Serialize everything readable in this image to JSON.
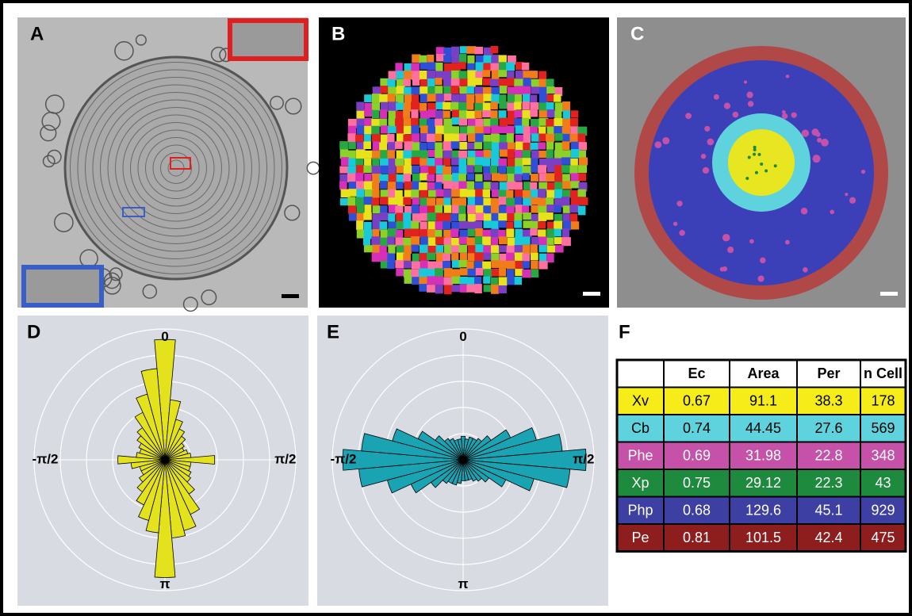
{
  "panels": [
    "A",
    "B",
    "C",
    "D",
    "E",
    "F"
  ],
  "chart_data": [
    {
      "type": "polar-bar",
      "color": "#e3e21c",
      "rlim": [
        0,
        5
      ],
      "rticks": [
        1,
        2,
        3,
        4,
        5
      ],
      "xticks": [
        {
          "value": 0,
          "label": "0"
        },
        {
          "value": 90,
          "label": "π/2"
        },
        {
          "value": 180,
          "label": "π"
        },
        {
          "value": 270,
          "label": "-π/2"
        }
      ],
      "x": [
        0,
        10,
        20,
        30,
        40,
        50,
        60,
        70,
        80,
        90,
        100,
        110,
        120,
        130,
        140,
        150,
        160,
        170,
        180,
        190,
        200,
        210,
        220,
        230,
        240,
        250,
        260,
        270,
        280,
        290,
        300,
        310,
        320,
        330,
        340,
        350
      ],
      "values": [
        4.6,
        2.3,
        1.6,
        1.3,
        1.1,
        0.9,
        0.8,
        0.9,
        1.0,
        1.9,
        1.0,
        1.0,
        1.1,
        1.2,
        1.6,
        2.3,
        2.8,
        3.0,
        4.5,
        2.8,
        2.4,
        1.9,
        1.5,
        1.2,
        1.0,
        1.0,
        1.3,
        1.8,
        1.1,
        1.0,
        1.1,
        1.3,
        1.5,
        2.0,
        2.6,
        3.5
      ]
    },
    {
      "type": "polar-bar",
      "color": "#1aa3b2",
      "rlim": [
        0,
        5
      ],
      "rticks": [
        1,
        2,
        3,
        4,
        5
      ],
      "xticks": [
        {
          "value": 0,
          "label": "0"
        },
        {
          "value": 90,
          "label": "π/2"
        },
        {
          "value": 180,
          "label": "π"
        },
        {
          "value": 270,
          "label": "-π/2"
        }
      ],
      "x": [
        0,
        10,
        20,
        30,
        40,
        50,
        60,
        70,
        80,
        90,
        100,
        110,
        120,
        130,
        140,
        150,
        160,
        170,
        180,
        190,
        200,
        210,
        220,
        230,
        240,
        250,
        260,
        270,
        280,
        290,
        300,
        310,
        320,
        330,
        340,
        350
      ],
      "values": [
        0.9,
        0.8,
        0.9,
        0.9,
        1.0,
        1.3,
        2.0,
        2.9,
        3.8,
        4.7,
        4.1,
        2.8,
        1.8,
        1.2,
        1.0,
        0.9,
        0.8,
        0.8,
        0.8,
        0.9,
        1.0,
        1.0,
        1.1,
        1.5,
        2.2,
        3.0,
        4.0,
        4.6,
        3.9,
        2.8,
        1.9,
        1.3,
        1.0,
        0.9,
        0.8,
        0.8
      ]
    }
  ],
  "table": {
    "header": [
      "Ec",
      "Area",
      "Per",
      "n Cell"
    ],
    "rows": [
      {
        "label": "Xv",
        "color": "#f5ec19",
        "values": [
          0.67,
          91.1,
          38.3,
          178
        ]
      },
      {
        "label": "Cb",
        "color": "#5ed3de",
        "values": [
          0.74,
          44.45,
          27.6,
          569
        ]
      },
      {
        "label": "Phe",
        "color": "#c552a8",
        "values": [
          0.69,
          31.98,
          22.8,
          348
        ]
      },
      {
        "label": "Xp",
        "color": "#1e8a3e",
        "values": [
          0.75,
          29.12,
          22.3,
          43
        ]
      },
      {
        "label": "Php",
        "color": "#3d3fa3",
        "values": [
          0.68,
          129.6,
          45.1,
          929
        ]
      },
      {
        "label": "Pe",
        "color": "#8e1d1d",
        "values": [
          0.81,
          101.5,
          42.4,
          475
        ]
      }
    ]
  }
}
